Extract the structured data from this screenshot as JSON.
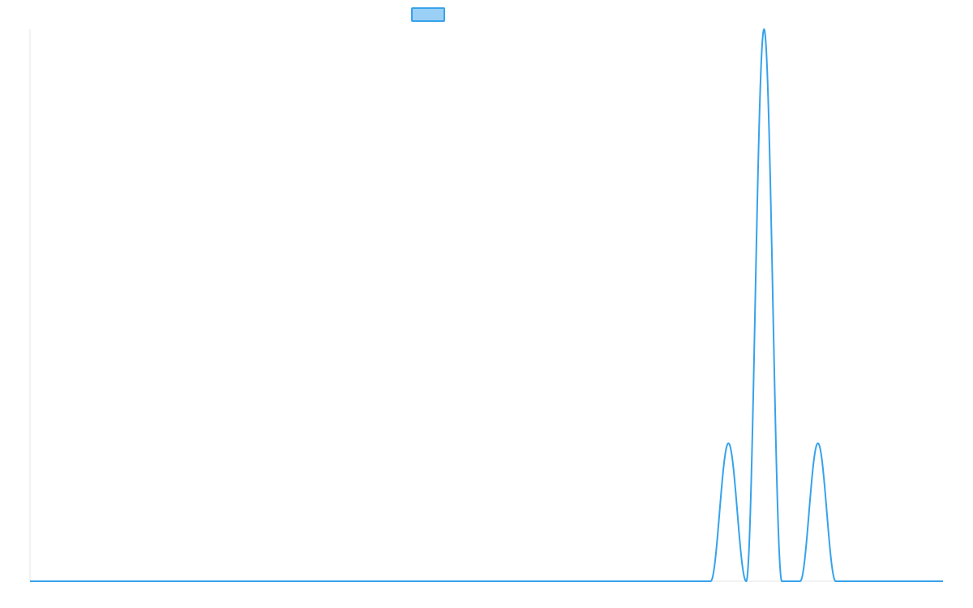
{
  "chart_data": {
    "type": "area",
    "title": "",
    "xlabel": "",
    "ylabel": "",
    "legend": {
      "position": "top-center",
      "entries": [
        {
          "label": "",
          "fill": "#9ad0f5",
          "stroke": "#36a2eb"
        }
      ]
    },
    "grid": false,
    "xlim": [
      0,
      1
    ],
    "ylim": [
      0,
      1
    ],
    "series": [
      {
        "color": "#36a2eb",
        "fill": "none",
        "peaks": [
          {
            "center": 0.765,
            "half_width": 0.0195,
            "height": 0.25
          },
          {
            "center": 0.804,
            "half_width": 0.0195,
            "height": 1.0
          },
          {
            "center": 0.863,
            "half_width": 0.0195,
            "height": 0.25
          }
        ]
      }
    ]
  }
}
